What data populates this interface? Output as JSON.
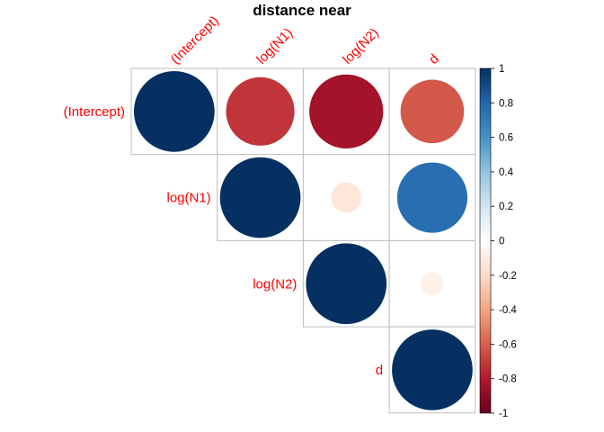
{
  "chart_data": {
    "type": "heatmap",
    "subtype": "correlation-circles-upper-triangle",
    "title": "distance near",
    "variables": [
      "(Intercept)",
      "log(N1)",
      "log(N2)",
      "d"
    ],
    "matrix": [
      [
        1.0,
        -0.72,
        -0.84,
        -0.62
      ],
      [
        -0.72,
        1.0,
        -0.14,
        0.76
      ],
      [
        -0.84,
        -0.14,
        1.0,
        -0.08
      ],
      [
        -0.62,
        0.76,
        -0.08,
        1.0
      ]
    ],
    "colorbar": {
      "range": [
        -1,
        1
      ],
      "ticks": [
        "1",
        "0.8",
        "0.6",
        "0.4",
        "0.2",
        "0",
        "-0.2",
        "-0.4",
        "-0.6",
        "-0.8",
        "-1"
      ],
      "tick_values": [
        1,
        0.8,
        0.6,
        0.4,
        0.2,
        0,
        -0.2,
        -0.4,
        -0.6,
        -0.8,
        -1
      ],
      "palette": [
        "#67001F",
        "#B2182B",
        "#D6604D",
        "#F4A582",
        "#FDDBC7",
        "#FFFFFF",
        "#D1E5F0",
        "#92C5DE",
        "#4393C3",
        "#2166AC",
        "#053061"
      ]
    },
    "label_color": "#FF0000",
    "grid_color": "#BEBEBE",
    "grid": true,
    "legend_position": "right"
  }
}
